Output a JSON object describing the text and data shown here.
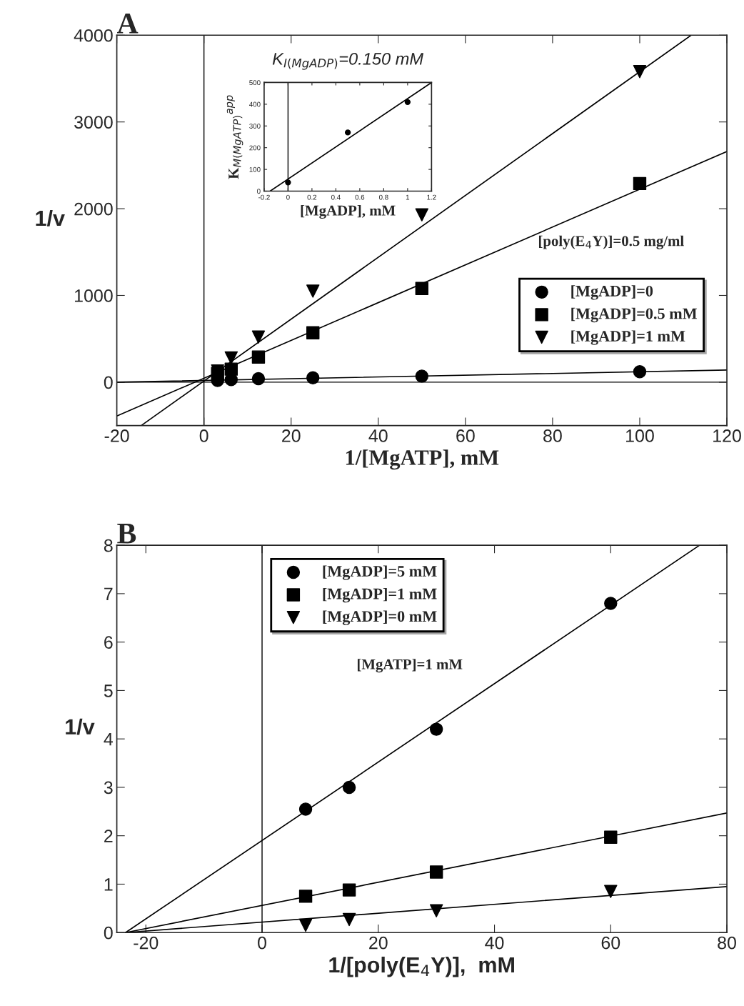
{
  "chart_data": [
    {
      "type": "scatter",
      "title": "A",
      "xlabel": "1/[MgATP], mM",
      "ylabel": "1/v",
      "xlim": [
        -20,
        120
      ],
      "ylim": [
        -500,
        4000
      ],
      "xticks": [
        -20,
        0,
        20,
        40,
        60,
        80,
        100,
        120
      ],
      "yticks": [
        0,
        1000,
        2000,
        3000,
        4000
      ],
      "grid": false,
      "legend": "bottom right",
      "annotations": [
        "[poly(E$_{4}$Y)]=0.5 mg/ml"
      ],
      "ref_lines": [
        {
          "axis": "x",
          "value": 0,
          "color": "#000000"
        },
        {
          "axis": "y",
          "value": 0,
          "color": "#000000"
        }
      ],
      "series": [
        {
          "name": "[MgADP]=0",
          "color": "#000000",
          "marker": "circle",
          "x": [
            3.125,
            6.25,
            12.5,
            25,
            50,
            100
          ],
          "values": [
            20,
            30,
            40,
            50,
            70,
            120
          ]
        },
        {
          "name": "[MgADP]=0.5 mM",
          "color": "#000000",
          "marker": "square",
          "x": [
            3.125,
            6.25,
            12.5,
            25,
            50,
            100
          ],
          "values": [
            100,
            150,
            290,
            570,
            1080,
            2290
          ]
        },
        {
          "name": "[MgADP]=1 mM",
          "color": "#000000",
          "marker": "triangle",
          "x": [
            3.125,
            6.25,
            12.5,
            25,
            50,
            100
          ],
          "values": [
            130,
            280,
            520,
            1050,
            1930,
            3580
          ]
        },
        {
          "type": "line",
          "color": "#000000",
          "marker": "none",
          "line_style": "solid",
          "x": [
            -20,
            120
          ],
          "values": [
            0,
            140
          ]
        },
        {
          "type": "line",
          "color": "#000000",
          "marker": "none",
          "line_style": "solid",
          "x": [
            -20,
            120
          ],
          "values": [
            -390,
            2660
          ]
        },
        {
          "type": "line",
          "color": "#000000",
          "marker": "none",
          "line_style": "solid",
          "x": [
            -14.4,
            111.8
          ],
          "values": [
            -500,
            4000
          ]
        }
      ]
    },
    {
      "type": "scatter",
      "title": "K$_{I(MgADP)}$=0.150 mM",
      "xlabel": "[MgADP], mM",
      "ylabel": "K$_{M(MgATP)}$$^{app}$",
      "xlim": [
        -0.2,
        1.2
      ],
      "ylim": [
        0,
        500
      ],
      "xticks": [
        -0.2,
        0,
        0.2,
        0.4,
        0.6,
        0.8,
        1,
        1.2
      ],
      "yticks": [
        0,
        100,
        200,
        300,
        400,
        500
      ],
      "grid": false,
      "ref_lines": [
        {
          "axis": "x",
          "value": 0,
          "color": "#000000"
        }
      ],
      "series": [
        {
          "color": "#000000",
          "marker": "circle",
          "x": [
            0,
            0.5,
            1
          ],
          "values": [
            40,
            270,
            410
          ]
        },
        {
          "type": "line",
          "color": "#000000",
          "marker": "none",
          "line_style": "solid",
          "x": [
            -0.15,
            1.2
          ],
          "values": [
            0,
            500
          ]
        }
      ]
    },
    {
      "type": "scatter",
      "title": "B",
      "xlabel": "1/[poly(E$_{4}$Y)],  mM",
      "ylabel": "1/v",
      "xlim": [
        -25,
        80
      ],
      "ylim": [
        0,
        8
      ],
      "xticks": [
        -20,
        0,
        20,
        40,
        60,
        80
      ],
      "yticks": [
        0,
        1,
        2,
        3,
        4,
        5,
        6,
        7,
        8
      ],
      "grid": false,
      "legend": "top left",
      "annotations": [
        "[MgATP]=1 mM"
      ],
      "ref_lines": [
        {
          "axis": "x",
          "value": 0,
          "color": "#000000"
        }
      ],
      "series": [
        {
          "name": "[MgADP]=5 mM",
          "color": "#000000",
          "marker": "circle",
          "x": [
            7.5,
            15,
            30,
            60
          ],
          "values": [
            2.55,
            3.0,
            4.2,
            6.8
          ]
        },
        {
          "name": "[MgADP]=1 mM",
          "color": "#000000",
          "marker": "square",
          "x": [
            7.5,
            15,
            30,
            60
          ],
          "values": [
            0.75,
            0.88,
            1.25,
            1.97
          ]
        },
        {
          "name": "[MgADP]=0 mM",
          "color": "#000000",
          "marker": "triangle",
          "x": [
            7.5,
            15,
            30,
            60
          ],
          "values": [
            0.15,
            0.27,
            0.45,
            0.85
          ]
        },
        {
          "type": "line",
          "color": "#000000",
          "marker": "none",
          "line_style": "solid",
          "x": [
            -23.5,
            75.3
          ],
          "values": [
            0,
            8
          ]
        },
        {
          "type": "line",
          "color": "#000000",
          "marker": "none",
          "line_style": "solid",
          "x": [
            -23.5,
            80
          ],
          "values": [
            0,
            2.47
          ]
        },
        {
          "type": "line",
          "color": "#000000",
          "marker": "none",
          "line_style": "solid",
          "x": [
            -23.5,
            80
          ],
          "values": [
            0,
            0.95
          ]
        }
      ]
    }
  ]
}
